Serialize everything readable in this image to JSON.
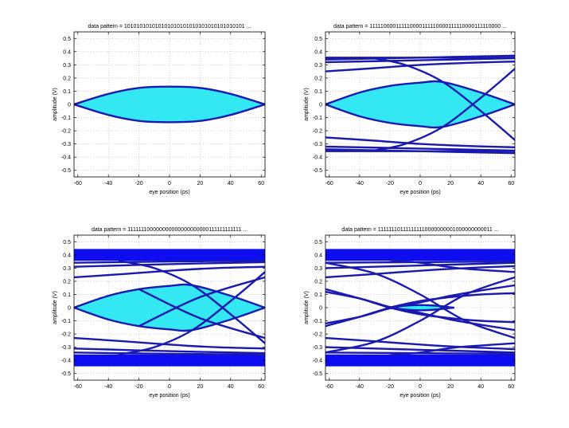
{
  "chart_data": [
    {
      "type": "line",
      "title": "data pattern = 101010101010101010101010101010101010101 ...",
      "xlabel": "eye position (ps)",
      "ylabel": "amplitude (V)",
      "xlim": [
        -62.5,
        62.5
      ],
      "ylim": [
        -0.55,
        0.55
      ],
      "xticks": [
        -60,
        -40,
        -20,
        0,
        20,
        40,
        60
      ],
      "yticks": [
        -0.5,
        -0.4,
        -0.3,
        -0.2,
        -0.1,
        0,
        0.1,
        0.2,
        0.3,
        0.4,
        0.5
      ],
      "grid": true,
      "eye_opening": {
        "x": [
          -62.5,
          -40,
          -20,
          0,
          20,
          40,
          62.5
        ],
        "upper": [
          0,
          0.08,
          0.125,
          0.135,
          0.125,
          0.08,
          0
        ],
        "lower": [
          0,
          -0.08,
          -0.125,
          -0.135,
          -0.125,
          -0.08,
          0
        ]
      },
      "bands": [],
      "traces": [
        {
          "x": [
            -62.5,
            -40,
            -20,
            0,
            20,
            40,
            62.5
          ],
          "y": [
            0,
            0.08,
            0.125,
            0.135,
            0.125,
            0.08,
            0
          ]
        },
        {
          "x": [
            -62.5,
            -40,
            -20,
            0,
            20,
            40,
            62.5
          ],
          "y": [
            0,
            -0.08,
            -0.125,
            -0.135,
            -0.125,
            -0.08,
            0
          ]
        }
      ]
    },
    {
      "type": "line",
      "title": "data pattern = 111110000111110000111110000111110000111110000 ...",
      "xlabel": "eye position (ps)",
      "ylabel": "amplitude (V)",
      "xlim": [
        -62.5,
        62.5
      ],
      "ylim": [
        -0.55,
        0.55
      ],
      "xticks": [
        -60,
        -40,
        -20,
        0,
        20,
        40,
        60
      ],
      "yticks": [
        -0.5,
        -0.4,
        -0.3,
        -0.2,
        -0.1,
        0,
        0.1,
        0.2,
        0.3,
        0.4,
        0.5
      ],
      "grid": true,
      "eye_opening": {
        "x": [
          -62.5,
          -40,
          -20,
          0,
          15,
          40,
          62.5
        ],
        "upper": [
          0,
          0.09,
          0.14,
          0.165,
          0.17,
          0.09,
          0
        ],
        "lower": [
          0,
          -0.09,
          -0.14,
          -0.165,
          -0.17,
          -0.09,
          0
        ]
      },
      "bands": [],
      "traces": [
        {
          "x": [
            -62.5,
            -30,
            0,
            30,
            62.5
          ],
          "y": [
            0.355,
            0.355,
            0.355,
            0.355,
            0.355
          ]
        },
        {
          "x": [
            -62.5,
            0,
            62.5
          ],
          "y": [
            0.34,
            0.355,
            0.37
          ]
        },
        {
          "x": [
            -62.5,
            0,
            62.5
          ],
          "y": [
            0.32,
            0.335,
            0.35
          ]
        },
        {
          "x": [
            -62.5,
            -30,
            0,
            30,
            62.5
          ],
          "y": [
            0.25,
            0.275,
            0.3,
            0.315,
            0.325
          ]
        },
        {
          "x": [
            -62.5,
            -30,
            0,
            30,
            62.5
          ],
          "y": [
            -0.355,
            -0.355,
            -0.355,
            -0.355,
            -0.355
          ]
        },
        {
          "x": [
            -62.5,
            0,
            62.5
          ],
          "y": [
            -0.34,
            -0.355,
            -0.37
          ]
        },
        {
          "x": [
            -62.5,
            0,
            62.5
          ],
          "y": [
            -0.32,
            -0.335,
            -0.35
          ]
        },
        {
          "x": [
            -62.5,
            -30,
            0,
            30,
            62.5
          ],
          "y": [
            -0.25,
            -0.275,
            -0.3,
            -0.315,
            -0.325
          ]
        },
        {
          "x": [
            -62.5,
            -40,
            -20,
            0,
            15,
            40,
            62.5
          ],
          "y": [
            0,
            0.09,
            0.14,
            0.165,
            0.17,
            0.09,
            0
          ]
        },
        {
          "x": [
            -62.5,
            -40,
            -20,
            0,
            15,
            40,
            62.5
          ],
          "y": [
            0,
            -0.09,
            -0.14,
            -0.165,
            -0.17,
            -0.09,
            0
          ]
        },
        {
          "x": [
            -33,
            -10,
            15,
            40,
            62.5
          ],
          "y": [
            0.355,
            0.3,
            0.17,
            -0.05,
            -0.27
          ]
        },
        {
          "x": [
            -33,
            -10,
            15,
            40,
            62.5
          ],
          "y": [
            -0.355,
            -0.3,
            -0.17,
            0.05,
            0.27
          ]
        }
      ]
    },
    {
      "type": "line",
      "title": "data pattern = 111111100000000000000000000111111111111 ...",
      "xlabel": "eye position (ps)",
      "ylabel": "amplitude (V)",
      "xlim": [
        -62.5,
        62.5
      ],
      "ylim": [
        -0.55,
        0.55
      ],
      "xticks": [
        -60,
        -40,
        -20,
        0,
        20,
        40,
        60
      ],
      "yticks": [
        -0.5,
        -0.4,
        -0.3,
        -0.2,
        -0.1,
        0,
        0.1,
        0.2,
        0.3,
        0.4,
        0.5
      ],
      "grid": true,
      "eye_opening": {
        "x": [
          -62.5,
          -40,
          -20,
          0,
          15,
          40,
          62.5
        ],
        "upper": [
          0,
          0.09,
          0.14,
          0.165,
          0.17,
          0.09,
          0
        ],
        "lower": [
          0,
          -0.09,
          -0.14,
          -0.165,
          -0.17,
          -0.09,
          0
        ]
      },
      "bands": [
        [
          0.355,
          0.445
        ],
        [
          -0.445,
          -0.355
        ]
      ],
      "traces": [
        {
          "x": [
            -62.5,
            0,
            62.5
          ],
          "y": [
            0.34,
            0.35,
            0.355
          ]
        },
        {
          "x": [
            -62.5,
            0,
            62.5
          ],
          "y": [
            0.31,
            0.33,
            0.345
          ]
        },
        {
          "x": [
            -62.5,
            -30,
            0,
            30,
            62.5
          ],
          "y": [
            0.23,
            0.255,
            0.28,
            0.3,
            0.31
          ]
        },
        {
          "x": [
            -62.5,
            0,
            62.5
          ],
          "y": [
            -0.34,
            -0.35,
            -0.355
          ]
        },
        {
          "x": [
            -62.5,
            0,
            62.5
          ],
          "y": [
            -0.31,
            -0.33,
            -0.345
          ]
        },
        {
          "x": [
            -62.5,
            -30,
            0,
            30,
            62.5
          ],
          "y": [
            -0.23,
            -0.255,
            -0.28,
            -0.3,
            -0.31
          ]
        },
        {
          "x": [
            -62.5,
            -40,
            -20,
            0,
            15,
            40,
            62.5
          ],
          "y": [
            0,
            0.09,
            0.14,
            0.165,
            0.17,
            0.09,
            0
          ]
        },
        {
          "x": [
            -62.5,
            -40,
            -20,
            0,
            15,
            40,
            62.5
          ],
          "y": [
            0,
            -0.09,
            -0.14,
            -0.165,
            -0.17,
            -0.09,
            0
          ]
        },
        {
          "x": [
            -33,
            -10,
            15,
            40,
            62.5
          ],
          "y": [
            0.355,
            0.3,
            0.17,
            -0.05,
            -0.27
          ]
        },
        {
          "x": [
            -33,
            -10,
            15,
            40,
            62.5
          ],
          "y": [
            -0.355,
            -0.3,
            -0.17,
            0.05,
            0.27
          ]
        },
        {
          "x": [
            -20,
            20,
            62.5
          ],
          "y": [
            -0.14,
            0.08,
            0.23
          ]
        },
        {
          "x": [
            -20,
            20,
            62.5
          ],
          "y": [
            0.14,
            -0.08,
            -0.23
          ]
        }
      ]
    },
    {
      "type": "line",
      "title": "data pattern = 111111101111111110000000001000000000011 ...",
      "xlabel": "eye position (ps)",
      "ylabel": "amplitude (V)",
      "xlim": [
        -62.5,
        62.5
      ],
      "ylim": [
        -0.55,
        0.55
      ],
      "xticks": [
        -60,
        -40,
        -20,
        0,
        20,
        40,
        60
      ],
      "yticks": [
        -0.5,
        -0.4,
        -0.3,
        -0.2,
        -0.1,
        0,
        0.1,
        0.2,
        0.3,
        0.4,
        0.5
      ],
      "grid": true,
      "eye_opening": {
        "x": [
          -22,
          -10,
          0,
          10,
          22
        ],
        "upper": [
          0,
          0.015,
          0.02,
          0.015,
          0
        ],
        "lower": [
          0,
          -0.015,
          -0.02,
          -0.015,
          0
        ]
      },
      "bands": [
        [
          0.355,
          0.445
        ],
        [
          -0.445,
          -0.355
        ]
      ],
      "traces": [
        {
          "x": [
            -62.5,
            0,
            62.5
          ],
          "y": [
            0.34,
            0.345,
            0.35
          ]
        },
        {
          "x": [
            -62.5,
            0,
            62.5
          ],
          "y": [
            0.3,
            0.32,
            0.34
          ]
        },
        {
          "x": [
            -62.5,
            -30,
            0,
            30,
            62.5
          ],
          "y": [
            0.23,
            0.255,
            0.28,
            0.3,
            0.315
          ]
        },
        {
          "x": [
            -62.5,
            0,
            62.5
          ],
          "y": [
            -0.34,
            -0.345,
            -0.35
          ]
        },
        {
          "x": [
            -62.5,
            0,
            62.5
          ],
          "y": [
            -0.3,
            -0.32,
            -0.34
          ]
        },
        {
          "x": [
            -62.5,
            -30,
            0,
            30,
            62.5
          ],
          "y": [
            -0.23,
            -0.255,
            -0.28,
            -0.3,
            -0.315
          ]
        },
        {
          "x": [
            -62.5,
            -30,
            0,
            30,
            62.5
          ],
          "y": [
            0.34,
            0.26,
            0.1,
            -0.1,
            -0.23
          ]
        },
        {
          "x": [
            -62.5,
            -30,
            0,
            30,
            62.5
          ],
          "y": [
            -0.34,
            -0.26,
            -0.1,
            0.1,
            0.23
          ]
        },
        {
          "x": [
            -62.5,
            -40,
            -20,
            0,
            20,
            40,
            62.5
          ],
          "y": [
            0.12,
            0.07,
            0.005,
            -0.04,
            -0.09,
            -0.13,
            -0.17
          ]
        },
        {
          "x": [
            -62.5,
            -40,
            -20,
            0,
            20,
            40,
            62.5
          ],
          "y": [
            -0.12,
            -0.07,
            -0.005,
            0.04,
            0.09,
            0.13,
            0.17
          ]
        },
        {
          "x": [
            -62.5,
            -40,
            -20,
            0,
            20,
            40,
            62.5
          ],
          "y": [
            -0.14,
            -0.07,
            0,
            0.05,
            0.08,
            0.1,
            0.11
          ]
        },
        {
          "x": [
            -62.5,
            -40,
            -20,
            0,
            20,
            40,
            62.5
          ],
          "y": [
            0.14,
            0.07,
            0,
            -0.05,
            -0.08,
            -0.1,
            -0.11
          ]
        },
        {
          "x": [
            -20,
            0,
            25,
            62.5
          ],
          "y": [
            0.36,
            0.34,
            0.3,
            0.27
          ]
        },
        {
          "x": [
            -20,
            0,
            25,
            62.5
          ],
          "y": [
            -0.36,
            -0.34,
            -0.3,
            -0.27
          ]
        },
        {
          "x": [
            -22,
            -10,
            0,
            10,
            22
          ],
          "y": [
            0,
            0.015,
            0.02,
            0.015,
            0
          ]
        },
        {
          "x": [
            -22,
            -10,
            0,
            10,
            22
          ],
          "y": [
            0,
            -0.015,
            -0.02,
            -0.015,
            0
          ]
        }
      ]
    }
  ],
  "colors": {
    "trace": "#1a1ab0",
    "band": "#0d0df0",
    "eye_fill": "#33e8f2",
    "grid": "#b4b4b4",
    "axis": "#000000"
  }
}
